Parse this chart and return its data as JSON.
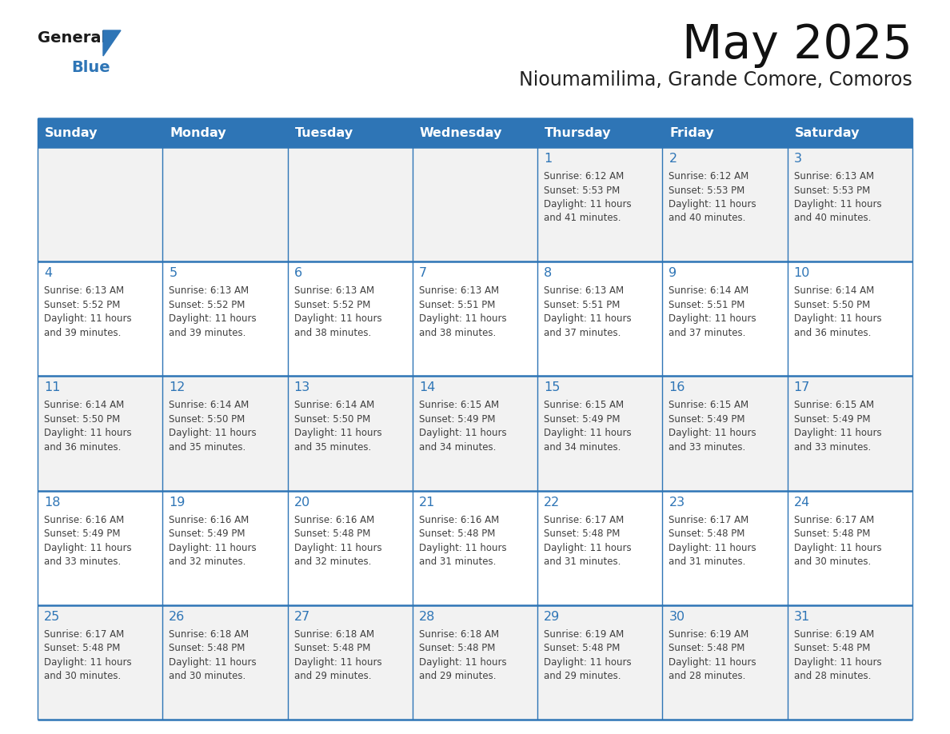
{
  "title": "May 2025",
  "subtitle": "Nioumamilima, Grande Comore, Comoros",
  "days_of_week": [
    "Sunday",
    "Monday",
    "Tuesday",
    "Wednesday",
    "Thursday",
    "Friday",
    "Saturday"
  ],
  "header_bg": "#2E75B6",
  "header_text": "#FFFFFF",
  "row_bg_odd": "#F2F2F2",
  "row_bg_even": "#FFFFFF",
  "text_color": "#404040",
  "day_num_color": "#2E75B6",
  "border_color": "#2E75B6",
  "logo_general_color": "#1a1a1a",
  "logo_blue_color": "#2E75B6",
  "weeks": [
    {
      "days": [
        {
          "day": null,
          "sunrise": null,
          "sunset": null,
          "daylight": null
        },
        {
          "day": null,
          "sunrise": null,
          "sunset": null,
          "daylight": null
        },
        {
          "day": null,
          "sunrise": null,
          "sunset": null,
          "daylight": null
        },
        {
          "day": null,
          "sunrise": null,
          "sunset": null,
          "daylight": null
        },
        {
          "day": 1,
          "sunrise": "6:12 AM",
          "sunset": "5:53 PM",
          "daylight": "11 hours and 41 minutes."
        },
        {
          "day": 2,
          "sunrise": "6:12 AM",
          "sunset": "5:53 PM",
          "daylight": "11 hours and 40 minutes."
        },
        {
          "day": 3,
          "sunrise": "6:13 AM",
          "sunset": "5:53 PM",
          "daylight": "11 hours and 40 minutes."
        }
      ]
    },
    {
      "days": [
        {
          "day": 4,
          "sunrise": "6:13 AM",
          "sunset": "5:52 PM",
          "daylight": "11 hours and 39 minutes."
        },
        {
          "day": 5,
          "sunrise": "6:13 AM",
          "sunset": "5:52 PM",
          "daylight": "11 hours and 39 minutes."
        },
        {
          "day": 6,
          "sunrise": "6:13 AM",
          "sunset": "5:52 PM",
          "daylight": "11 hours and 38 minutes."
        },
        {
          "day": 7,
          "sunrise": "6:13 AM",
          "sunset": "5:51 PM",
          "daylight": "11 hours and 38 minutes."
        },
        {
          "day": 8,
          "sunrise": "6:13 AM",
          "sunset": "5:51 PM",
          "daylight": "11 hours and 37 minutes."
        },
        {
          "day": 9,
          "sunrise": "6:14 AM",
          "sunset": "5:51 PM",
          "daylight": "11 hours and 37 minutes."
        },
        {
          "day": 10,
          "sunrise": "6:14 AM",
          "sunset": "5:50 PM",
          "daylight": "11 hours and 36 minutes."
        }
      ]
    },
    {
      "days": [
        {
          "day": 11,
          "sunrise": "6:14 AM",
          "sunset": "5:50 PM",
          "daylight": "11 hours and 36 minutes."
        },
        {
          "day": 12,
          "sunrise": "6:14 AM",
          "sunset": "5:50 PM",
          "daylight": "11 hours and 35 minutes."
        },
        {
          "day": 13,
          "sunrise": "6:14 AM",
          "sunset": "5:50 PM",
          "daylight": "11 hours and 35 minutes."
        },
        {
          "day": 14,
          "sunrise": "6:15 AM",
          "sunset": "5:49 PM",
          "daylight": "11 hours and 34 minutes."
        },
        {
          "day": 15,
          "sunrise": "6:15 AM",
          "sunset": "5:49 PM",
          "daylight": "11 hours and 34 minutes."
        },
        {
          "day": 16,
          "sunrise": "6:15 AM",
          "sunset": "5:49 PM",
          "daylight": "11 hours and 33 minutes."
        },
        {
          "day": 17,
          "sunrise": "6:15 AM",
          "sunset": "5:49 PM",
          "daylight": "11 hours and 33 minutes."
        }
      ]
    },
    {
      "days": [
        {
          "day": 18,
          "sunrise": "6:16 AM",
          "sunset": "5:49 PM",
          "daylight": "11 hours and 33 minutes."
        },
        {
          "day": 19,
          "sunrise": "6:16 AM",
          "sunset": "5:49 PM",
          "daylight": "11 hours and 32 minutes."
        },
        {
          "day": 20,
          "sunrise": "6:16 AM",
          "sunset": "5:48 PM",
          "daylight": "11 hours and 32 minutes."
        },
        {
          "day": 21,
          "sunrise": "6:16 AM",
          "sunset": "5:48 PM",
          "daylight": "11 hours and 31 minutes."
        },
        {
          "day": 22,
          "sunrise": "6:17 AM",
          "sunset": "5:48 PM",
          "daylight": "11 hours and 31 minutes."
        },
        {
          "day": 23,
          "sunrise": "6:17 AM",
          "sunset": "5:48 PM",
          "daylight": "11 hours and 31 minutes."
        },
        {
          "day": 24,
          "sunrise": "6:17 AM",
          "sunset": "5:48 PM",
          "daylight": "11 hours and 30 minutes."
        }
      ]
    },
    {
      "days": [
        {
          "day": 25,
          "sunrise": "6:17 AM",
          "sunset": "5:48 PM",
          "daylight": "11 hours and 30 minutes."
        },
        {
          "day": 26,
          "sunrise": "6:18 AM",
          "sunset": "5:48 PM",
          "daylight": "11 hours and 30 minutes."
        },
        {
          "day": 27,
          "sunrise": "6:18 AM",
          "sunset": "5:48 PM",
          "daylight": "11 hours and 29 minutes."
        },
        {
          "day": 28,
          "sunrise": "6:18 AM",
          "sunset": "5:48 PM",
          "daylight": "11 hours and 29 minutes."
        },
        {
          "day": 29,
          "sunrise": "6:19 AM",
          "sunset": "5:48 PM",
          "daylight": "11 hours and 29 minutes."
        },
        {
          "day": 30,
          "sunrise": "6:19 AM",
          "sunset": "5:48 PM",
          "daylight": "11 hours and 28 minutes."
        },
        {
          "day": 31,
          "sunrise": "6:19 AM",
          "sunset": "5:48 PM",
          "daylight": "11 hours and 28 minutes."
        }
      ]
    }
  ]
}
